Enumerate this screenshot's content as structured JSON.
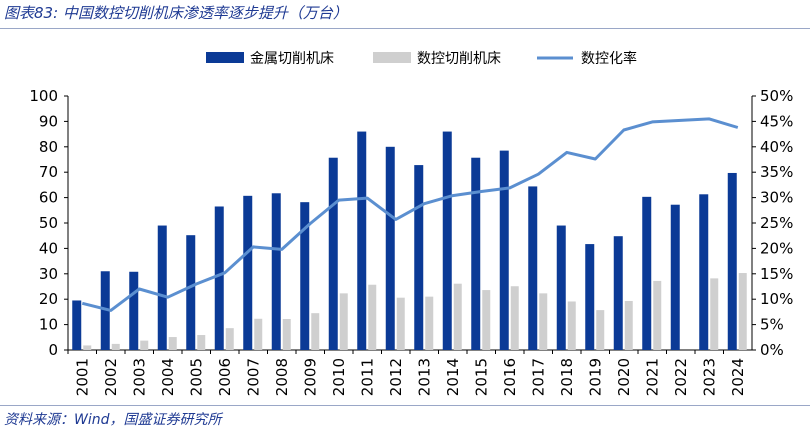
{
  "header": {
    "title": "图表83:  中国数控切削机床渗透率逐步提升（万台）"
  },
  "footer": {
    "source": "资料来源：Wind，国盛证券研究所"
  },
  "colors": {
    "metal": "#0b3a96",
    "cnc": "#cfcfcf",
    "rate": "#5b8fd0",
    "title": "#1f3a93"
  },
  "chart_data": {
    "type": "bar",
    "title": "中国数控切削机床渗透率逐步提升（万台）",
    "categories": [
      "2001",
      "2002",
      "2003",
      "2004",
      "2005",
      "2006",
      "2007",
      "2008",
      "2009",
      "2010",
      "2011",
      "2012",
      "2013",
      "2014",
      "2015",
      "2016",
      "2017",
      "2018",
      "2019",
      "2020",
      "2021",
      "2022",
      "2023",
      "2024"
    ],
    "series": [
      {
        "name": "金属切削机床",
        "type": "bar",
        "axis": "left",
        "values": [
          19.5,
          31,
          30.8,
          49,
          45.2,
          56.5,
          60.7,
          61.7,
          58.2,
          75.7,
          86,
          80,
          72.8,
          86,
          75.7,
          78.5,
          64.4,
          49,
          41.7,
          44.8,
          60.3,
          57.2,
          61.3,
          69.7
        ]
      },
      {
        "name": "数控切削机床",
        "type": "bar",
        "axis": "left",
        "values": [
          1.8,
          2.4,
          3.7,
          5.1,
          5.9,
          8.6,
          12.3,
          12.2,
          14.5,
          22.3,
          25.7,
          20.6,
          21,
          26.1,
          23.6,
          25.1,
          22.3,
          19.1,
          15.7,
          19.3,
          27.2,
          null,
          28.2,
          30.3
        ]
      },
      {
        "name": "数控化率",
        "type": "line",
        "axis": "right",
        "values": [
          0.092,
          0.078,
          0.12,
          0.104,
          0.13,
          0.152,
          0.203,
          0.198,
          0.249,
          0.295,
          0.299,
          0.257,
          0.288,
          0.304,
          0.312,
          0.319,
          0.346,
          0.389,
          0.376,
          0.433,
          0.449,
          0.452,
          0.455,
          0.438
        ]
      }
    ],
    "left_axis": {
      "ylim": [
        0,
        100
      ],
      "ticks": [
        "0",
        "10",
        "20",
        "30",
        "40",
        "50",
        "60",
        "70",
        "80",
        "90",
        "100"
      ]
    },
    "right_axis": {
      "ylim": [
        0,
        0.5
      ],
      "ticks": [
        "0%",
        "5%",
        "10%",
        "15%",
        "20%",
        "25%",
        "30%",
        "35%",
        "40%",
        "45%",
        "50%"
      ]
    },
    "legend": {
      "position": "top",
      "entries": [
        {
          "label": "金属切削机床",
          "kind": "bar",
          "color": "#0b3a96"
        },
        {
          "label": "数控切削机床",
          "kind": "bar",
          "color": "#cfcfcf"
        },
        {
          "label": "数控化率",
          "kind": "line",
          "color": "#5b8fd0"
        }
      ]
    },
    "grid": false
  }
}
